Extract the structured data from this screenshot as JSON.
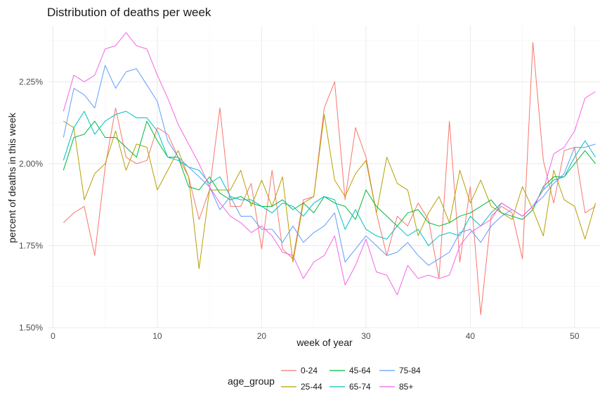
{
  "chart_data": {
    "type": "line",
    "title": "Distribution of deaths per week",
    "xlabel": "week of year",
    "ylabel": "percent of deaths in this week",
    "xlim": [
      -0.5,
      52.5
    ],
    "ylim": [
      1.5,
      2.42
    ],
    "x_ticks": [
      0,
      10,
      20,
      30,
      40,
      50
    ],
    "y_ticks": [
      1.5,
      1.75,
      2.0,
      2.25
    ],
    "y_tick_labels": [
      "1.50%",
      "1.75%",
      "2.00%",
      "2.25%"
    ],
    "grid": true,
    "legend": {
      "title": "age_group",
      "placement": "bottom"
    },
    "x": [
      1,
      2,
      3,
      4,
      5,
      6,
      7,
      8,
      9,
      10,
      11,
      12,
      13,
      14,
      15,
      16,
      17,
      18,
      19,
      20,
      21,
      22,
      23,
      24,
      25,
      26,
      27,
      28,
      29,
      30,
      31,
      32,
      33,
      34,
      35,
      36,
      37,
      38,
      39,
      40,
      41,
      42,
      43,
      44,
      45,
      46,
      47,
      48,
      49,
      50,
      51,
      52
    ],
    "series": [
      {
        "name": "0-24",
        "color": "#F8766D",
        "values": [
          1.82,
          1.85,
          1.87,
          1.72,
          1.99,
          2.17,
          2.02,
          2.0,
          2.01,
          2.11,
          2.09,
          2.02,
          1.96,
          1.83,
          1.92,
          2.17,
          1.87,
          1.87,
          1.94,
          1.74,
          1.98,
          1.74,
          1.71,
          1.89,
          1.9,
          2.17,
          2.25,
          1.89,
          2.11,
          2.02,
          1.85,
          1.72,
          1.84,
          1.81,
          1.88,
          1.83,
          1.65,
          2.13,
          1.7,
          1.93,
          1.54,
          1.84,
          1.87,
          1.85,
          1.71,
          2.37,
          2.01,
          1.88,
          2.04,
          2.05,
          1.85,
          1.87
        ]
      },
      {
        "name": "25-44",
        "color": "#B79F00",
        "values": [
          2.13,
          2.11,
          1.89,
          1.97,
          2.0,
          2.1,
          1.98,
          2.06,
          2.05,
          1.92,
          1.98,
          2.04,
          1.96,
          1.68,
          1.92,
          1.92,
          1.92,
          1.98,
          1.87,
          1.95,
          1.87,
          1.96,
          1.7,
          1.88,
          1.9,
          2.15,
          1.95,
          1.9,
          1.97,
          2.01,
          1.85,
          2.02,
          1.94,
          1.92,
          1.78,
          1.85,
          1.9,
          1.82,
          1.98,
          1.88,
          1.95,
          1.87,
          1.85,
          1.83,
          1.93,
          1.86,
          1.78,
          1.98,
          1.89,
          1.87,
          1.77,
          1.88
        ]
      },
      {
        "name": "45-64",
        "color": "#00BA38",
        "values": [
          1.98,
          2.08,
          2.09,
          2.13,
          2.08,
          2.08,
          2.05,
          2.02,
          2.13,
          2.07,
          2.02,
          2.02,
          1.93,
          1.92,
          1.96,
          1.91,
          1.89,
          1.9,
          1.88,
          1.87,
          1.87,
          1.89,
          1.86,
          1.88,
          1.85,
          1.9,
          1.88,
          1.87,
          1.83,
          1.92,
          1.87,
          1.84,
          1.81,
          1.85,
          1.86,
          1.82,
          1.81,
          1.82,
          1.84,
          1.85,
          1.87,
          1.89,
          1.85,
          1.84,
          1.83,
          1.86,
          1.93,
          1.96,
          1.96,
          2.0,
          2.04,
          2.0
        ]
      },
      {
        "name": "65-74",
        "color": "#00BFC4",
        "values": [
          2.01,
          2.11,
          2.16,
          2.09,
          2.13,
          2.15,
          2.16,
          2.14,
          2.14,
          2.1,
          2.02,
          2.01,
          1.99,
          1.98,
          1.94,
          1.96,
          1.9,
          1.89,
          1.89,
          1.87,
          1.85,
          1.88,
          1.87,
          1.84,
          1.88,
          1.9,
          1.89,
          1.8,
          1.86,
          1.8,
          1.78,
          1.77,
          1.81,
          1.78,
          1.8,
          1.75,
          1.78,
          1.79,
          1.78,
          1.84,
          1.81,
          1.85,
          1.88,
          1.86,
          1.84,
          1.87,
          1.92,
          1.95,
          1.96,
          2.02,
          2.07,
          2.02
        ]
      },
      {
        "name": "75-84",
        "color": "#619CFF",
        "values": [
          2.08,
          2.23,
          2.21,
          2.17,
          2.3,
          2.23,
          2.28,
          2.29,
          2.24,
          2.19,
          2.07,
          2.02,
          1.99,
          1.96,
          1.93,
          1.86,
          1.9,
          1.84,
          1.84,
          1.8,
          1.8,
          1.76,
          1.81,
          1.76,
          1.79,
          1.81,
          1.85,
          1.7,
          1.74,
          1.78,
          1.75,
          1.72,
          1.73,
          1.76,
          1.72,
          1.69,
          1.71,
          1.73,
          1.79,
          1.8,
          1.76,
          1.81,
          1.84,
          1.86,
          1.84,
          1.87,
          1.9,
          1.94,
          1.97,
          2.05,
          2.05,
          2.06
        ]
      },
      {
        "name": "85+",
        "color": "#F564E3",
        "values": [
          2.16,
          2.27,
          2.25,
          2.27,
          2.35,
          2.36,
          2.4,
          2.36,
          2.35,
          2.27,
          2.2,
          2.12,
          2.06,
          2.0,
          1.93,
          1.88,
          1.84,
          1.82,
          1.79,
          1.81,
          1.78,
          1.73,
          1.72,
          1.65,
          1.7,
          1.72,
          1.78,
          1.63,
          1.69,
          1.77,
          1.67,
          1.66,
          1.6,
          1.69,
          1.65,
          1.66,
          1.65,
          1.66,
          1.75,
          1.79,
          1.81,
          1.83,
          1.88,
          1.86,
          1.84,
          1.87,
          1.92,
          2.03,
          2.05,
          2.1,
          2.2,
          2.22
        ]
      }
    ]
  }
}
